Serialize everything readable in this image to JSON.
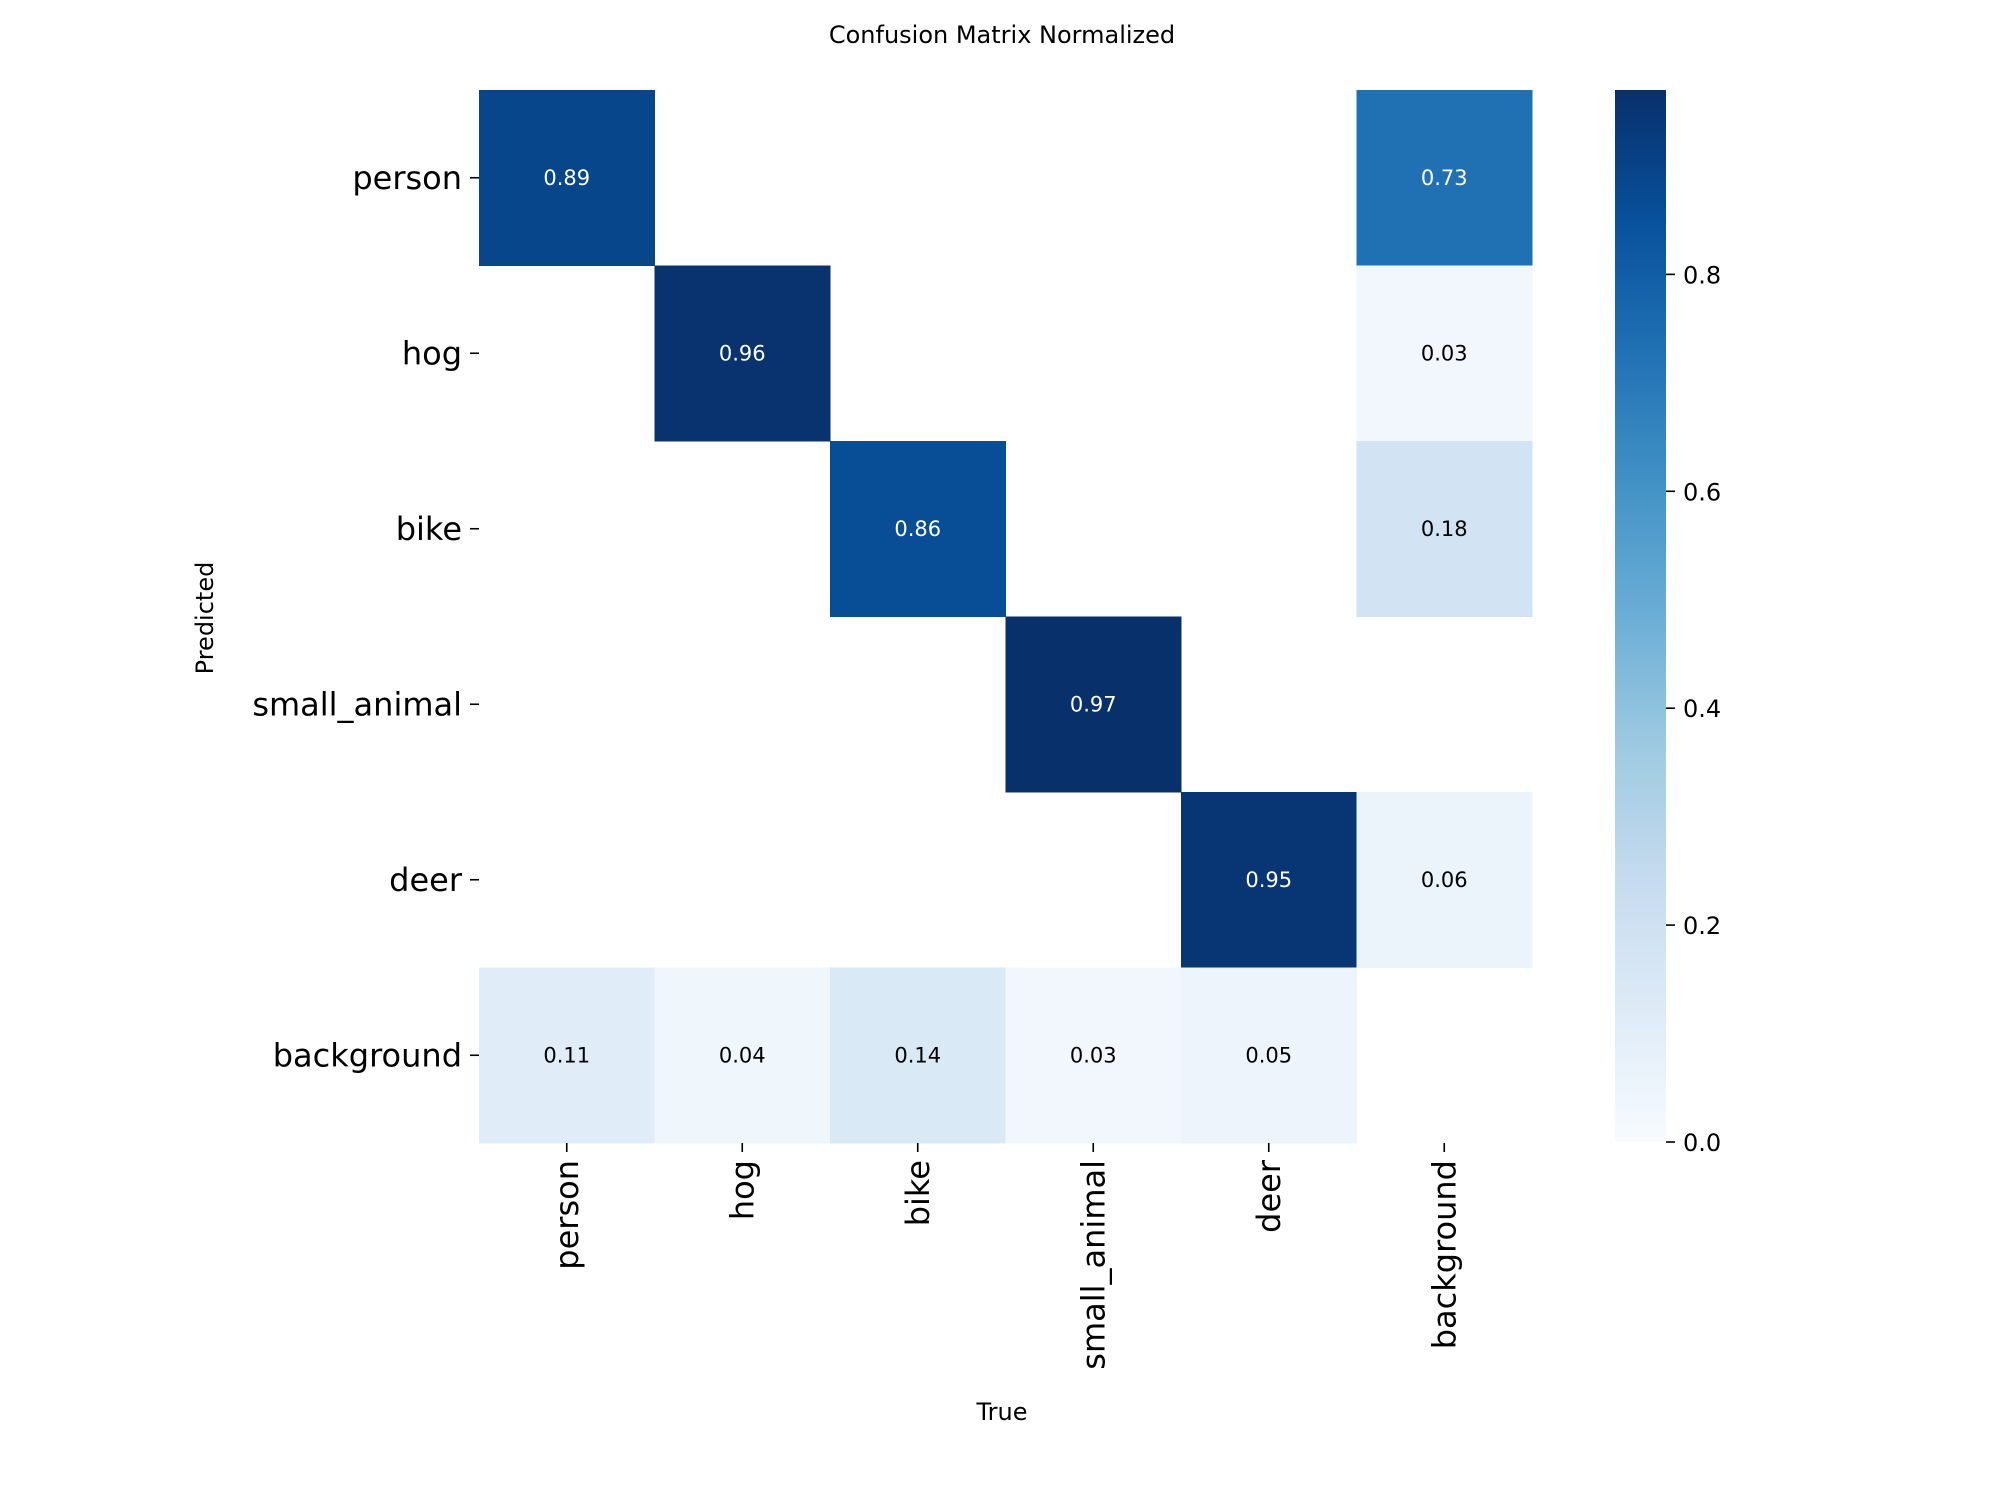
{
  "chart_data": {
    "type": "heatmap",
    "title": "Confusion Matrix Normalized",
    "xlabel": "True",
    "ylabel": "Predicted",
    "x_categories": [
      "person",
      "hog",
      "bike",
      "small_animal",
      "deer",
      "background"
    ],
    "y_categories": [
      "person",
      "hog",
      "bike",
      "small_animal",
      "deer",
      "background"
    ],
    "values": [
      [
        0.89,
        null,
        null,
        null,
        null,
        0.73
      ],
      [
        null,
        0.96,
        null,
        null,
        null,
        0.03
      ],
      [
        null,
        null,
        0.86,
        null,
        null,
        0.18
      ],
      [
        null,
        null,
        null,
        0.97,
        null,
        null
      ],
      [
        null,
        null,
        null,
        null,
        0.95,
        0.06
      ],
      [
        0.11,
        0.04,
        0.14,
        0.03,
        0.05,
        null
      ]
    ],
    "colorbar": {
      "colormap": "Blues",
      "range": [
        0,
        0.97
      ],
      "ticks": [
        0.0,
        0.2,
        0.4,
        0.6,
        0.8
      ],
      "tick_labels": [
        "0.0",
        "0.2",
        "0.4",
        "0.6",
        "0.8"
      ]
    },
    "grid": false
  }
}
